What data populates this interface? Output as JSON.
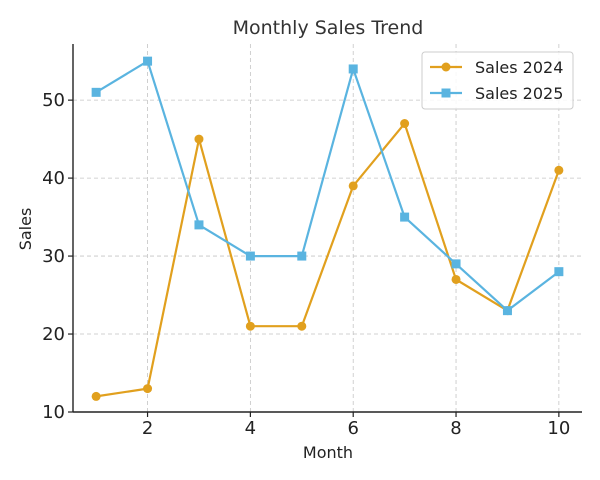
{
  "chart_data": {
    "type": "line",
    "title": "Monthly Sales Trend",
    "xlabel": "Month",
    "ylabel": "Sales",
    "x": [
      1,
      2,
      3,
      4,
      5,
      6,
      7,
      8,
      9,
      10
    ],
    "xlim": [
      0.55,
      10.45
    ],
    "ylim": [
      10,
      57.2
    ],
    "xticks": [
      2,
      4,
      6,
      8,
      10
    ],
    "yticks": [
      10,
      20,
      30,
      40,
      50
    ],
    "grid": true,
    "legend_position": "top-right",
    "series": [
      {
        "name": "Sales 2024",
        "color": "#E1A01E",
        "marker": "circle",
        "values": [
          12,
          13,
          45,
          21,
          21,
          39,
          47,
          27,
          23,
          41
        ]
      },
      {
        "name": "Sales 2025",
        "color": "#5AB4E0",
        "marker": "square",
        "values": [
          51,
          55,
          34,
          30,
          30,
          54,
          35,
          29,
          23,
          28
        ]
      }
    ]
  }
}
